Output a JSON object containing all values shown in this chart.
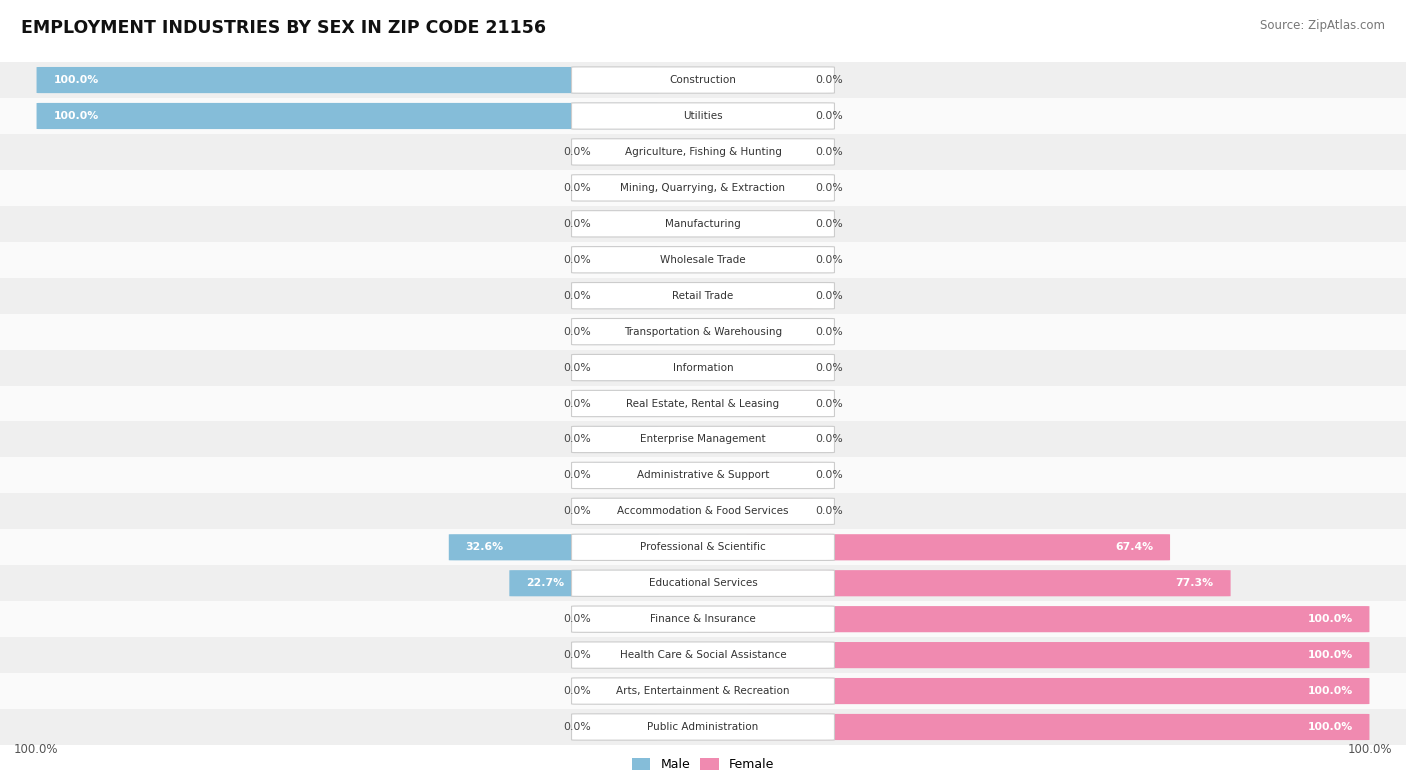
{
  "title": "EMPLOYMENT INDUSTRIES BY SEX IN ZIP CODE 21156",
  "source": "Source: ZipAtlas.com",
  "categories": [
    "Construction",
    "Utilities",
    "Agriculture, Fishing & Hunting",
    "Mining, Quarrying, & Extraction",
    "Manufacturing",
    "Wholesale Trade",
    "Retail Trade",
    "Transportation & Warehousing",
    "Information",
    "Real Estate, Rental & Leasing",
    "Enterprise Management",
    "Administrative & Support",
    "Accommodation & Food Services",
    "Professional & Scientific",
    "Educational Services",
    "Finance & Insurance",
    "Health Care & Social Assistance",
    "Arts, Entertainment & Recreation",
    "Public Administration"
  ],
  "male": [
    100.0,
    100.0,
    0.0,
    0.0,
    0.0,
    0.0,
    0.0,
    0.0,
    0.0,
    0.0,
    0.0,
    0.0,
    0.0,
    32.6,
    22.7,
    0.0,
    0.0,
    0.0,
    0.0
  ],
  "female": [
    0.0,
    0.0,
    0.0,
    0.0,
    0.0,
    0.0,
    0.0,
    0.0,
    0.0,
    0.0,
    0.0,
    0.0,
    0.0,
    67.4,
    77.3,
    100.0,
    100.0,
    100.0,
    100.0
  ],
  "male_color": "#85bdd9",
  "female_color": "#f08ab0",
  "male_stub_color": "#b8d8ea",
  "female_stub_color": "#f5b8cc",
  "row_bg_even": "#efefef",
  "row_bg_odd": "#fafafa",
  "label_color": "#555555",
  "title_color": "#111111",
  "figsize": [
    14.06,
    7.76
  ],
  "dpi": 100
}
